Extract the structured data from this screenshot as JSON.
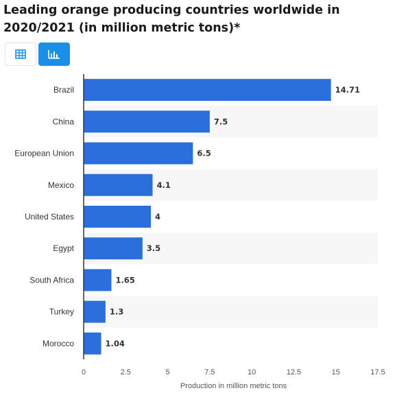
{
  "title": "Leading orange producing countries worldwide in 2020/2021 (in million metric tons)*",
  "view_toggle": {
    "table_icon": "table-icon",
    "chart_icon": "bar-chart-icon",
    "active": "chart"
  },
  "colors": {
    "bar": "#2a6fdb",
    "active_toggle": "#1a8fe8",
    "stripe": "#f7f7f7"
  },
  "chart_data": {
    "type": "bar",
    "orientation": "horizontal",
    "categories": [
      "Brazil",
      "China",
      "European Union",
      "Mexico",
      "United States",
      "Egypt",
      "South Africa",
      "Turkey",
      "Morocco"
    ],
    "values": [
      14.71,
      7.5,
      6.5,
      4.1,
      4,
      3.5,
      1.65,
      1.3,
      1.04
    ],
    "data_labels": [
      "14.71",
      "7.5",
      "6.5",
      "4.1",
      "4",
      "3.5",
      "1.65",
      "1.3",
      "1.04"
    ],
    "xlabel": "Production in million metric tons",
    "ylabel": "",
    "xlim": [
      0,
      17.5
    ],
    "xticks": [
      "0",
      "2.5",
      "5",
      "7.5",
      "10",
      "12.5",
      "15",
      "17.5"
    ],
    "grid": false,
    "alternating_row_stripes": true
  }
}
